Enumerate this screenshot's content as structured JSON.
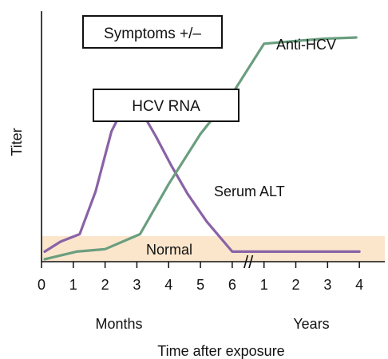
{
  "chart_data": {
    "type": "line",
    "ylabel": "Titer",
    "xlabel": "Time after exposure",
    "x_group_labels": [
      "Months",
      "Years"
    ],
    "x_tick_labels": [
      "0",
      "1",
      "2",
      "3",
      "4",
      "5",
      "6",
      "1",
      "2",
      "3",
      "4"
    ],
    "axis_break": "//",
    "normal_band_label": "Normal",
    "annotations": {
      "symptoms": "Symptoms +/–",
      "hcv_rna": "HCV RNA",
      "anti_hcv": "Anti-HCV",
      "serum_alt": "Serum ALT"
    },
    "series": [
      {
        "name": "HCV RNA",
        "color": "#8a62a6",
        "x": [
          0.1,
          0.6,
          1.2,
          1.7,
          2.2,
          2.6,
          3.1,
          3.6,
          4.1,
          4.6,
          5.2,
          6.0,
          6.5,
          7.0,
          8.0,
          9.0,
          10.0
        ],
        "y": [
          4,
          8,
          11,
          28,
          52,
          62,
          61,
          50,
          38,
          27,
          16,
          4,
          4,
          4,
          4,
          4,
          4
        ]
      },
      {
        "name": "Anti-HCV",
        "color": "#6a9e7f",
        "x": [
          0.1,
          1.1,
          2.0,
          3.1,
          4.0,
          5.0,
          6.0,
          7.0,
          7.9,
          8.9,
          9.9
        ],
        "y": [
          1,
          4,
          5,
          11,
          31,
          51,
          67,
          87,
          88,
          89,
          89.5
        ]
      }
    ],
    "normal_band_color": "#fbe6cc",
    "ylim": [
      0,
      100
    ],
    "xlim": [
      0,
      10.8
    ]
  }
}
